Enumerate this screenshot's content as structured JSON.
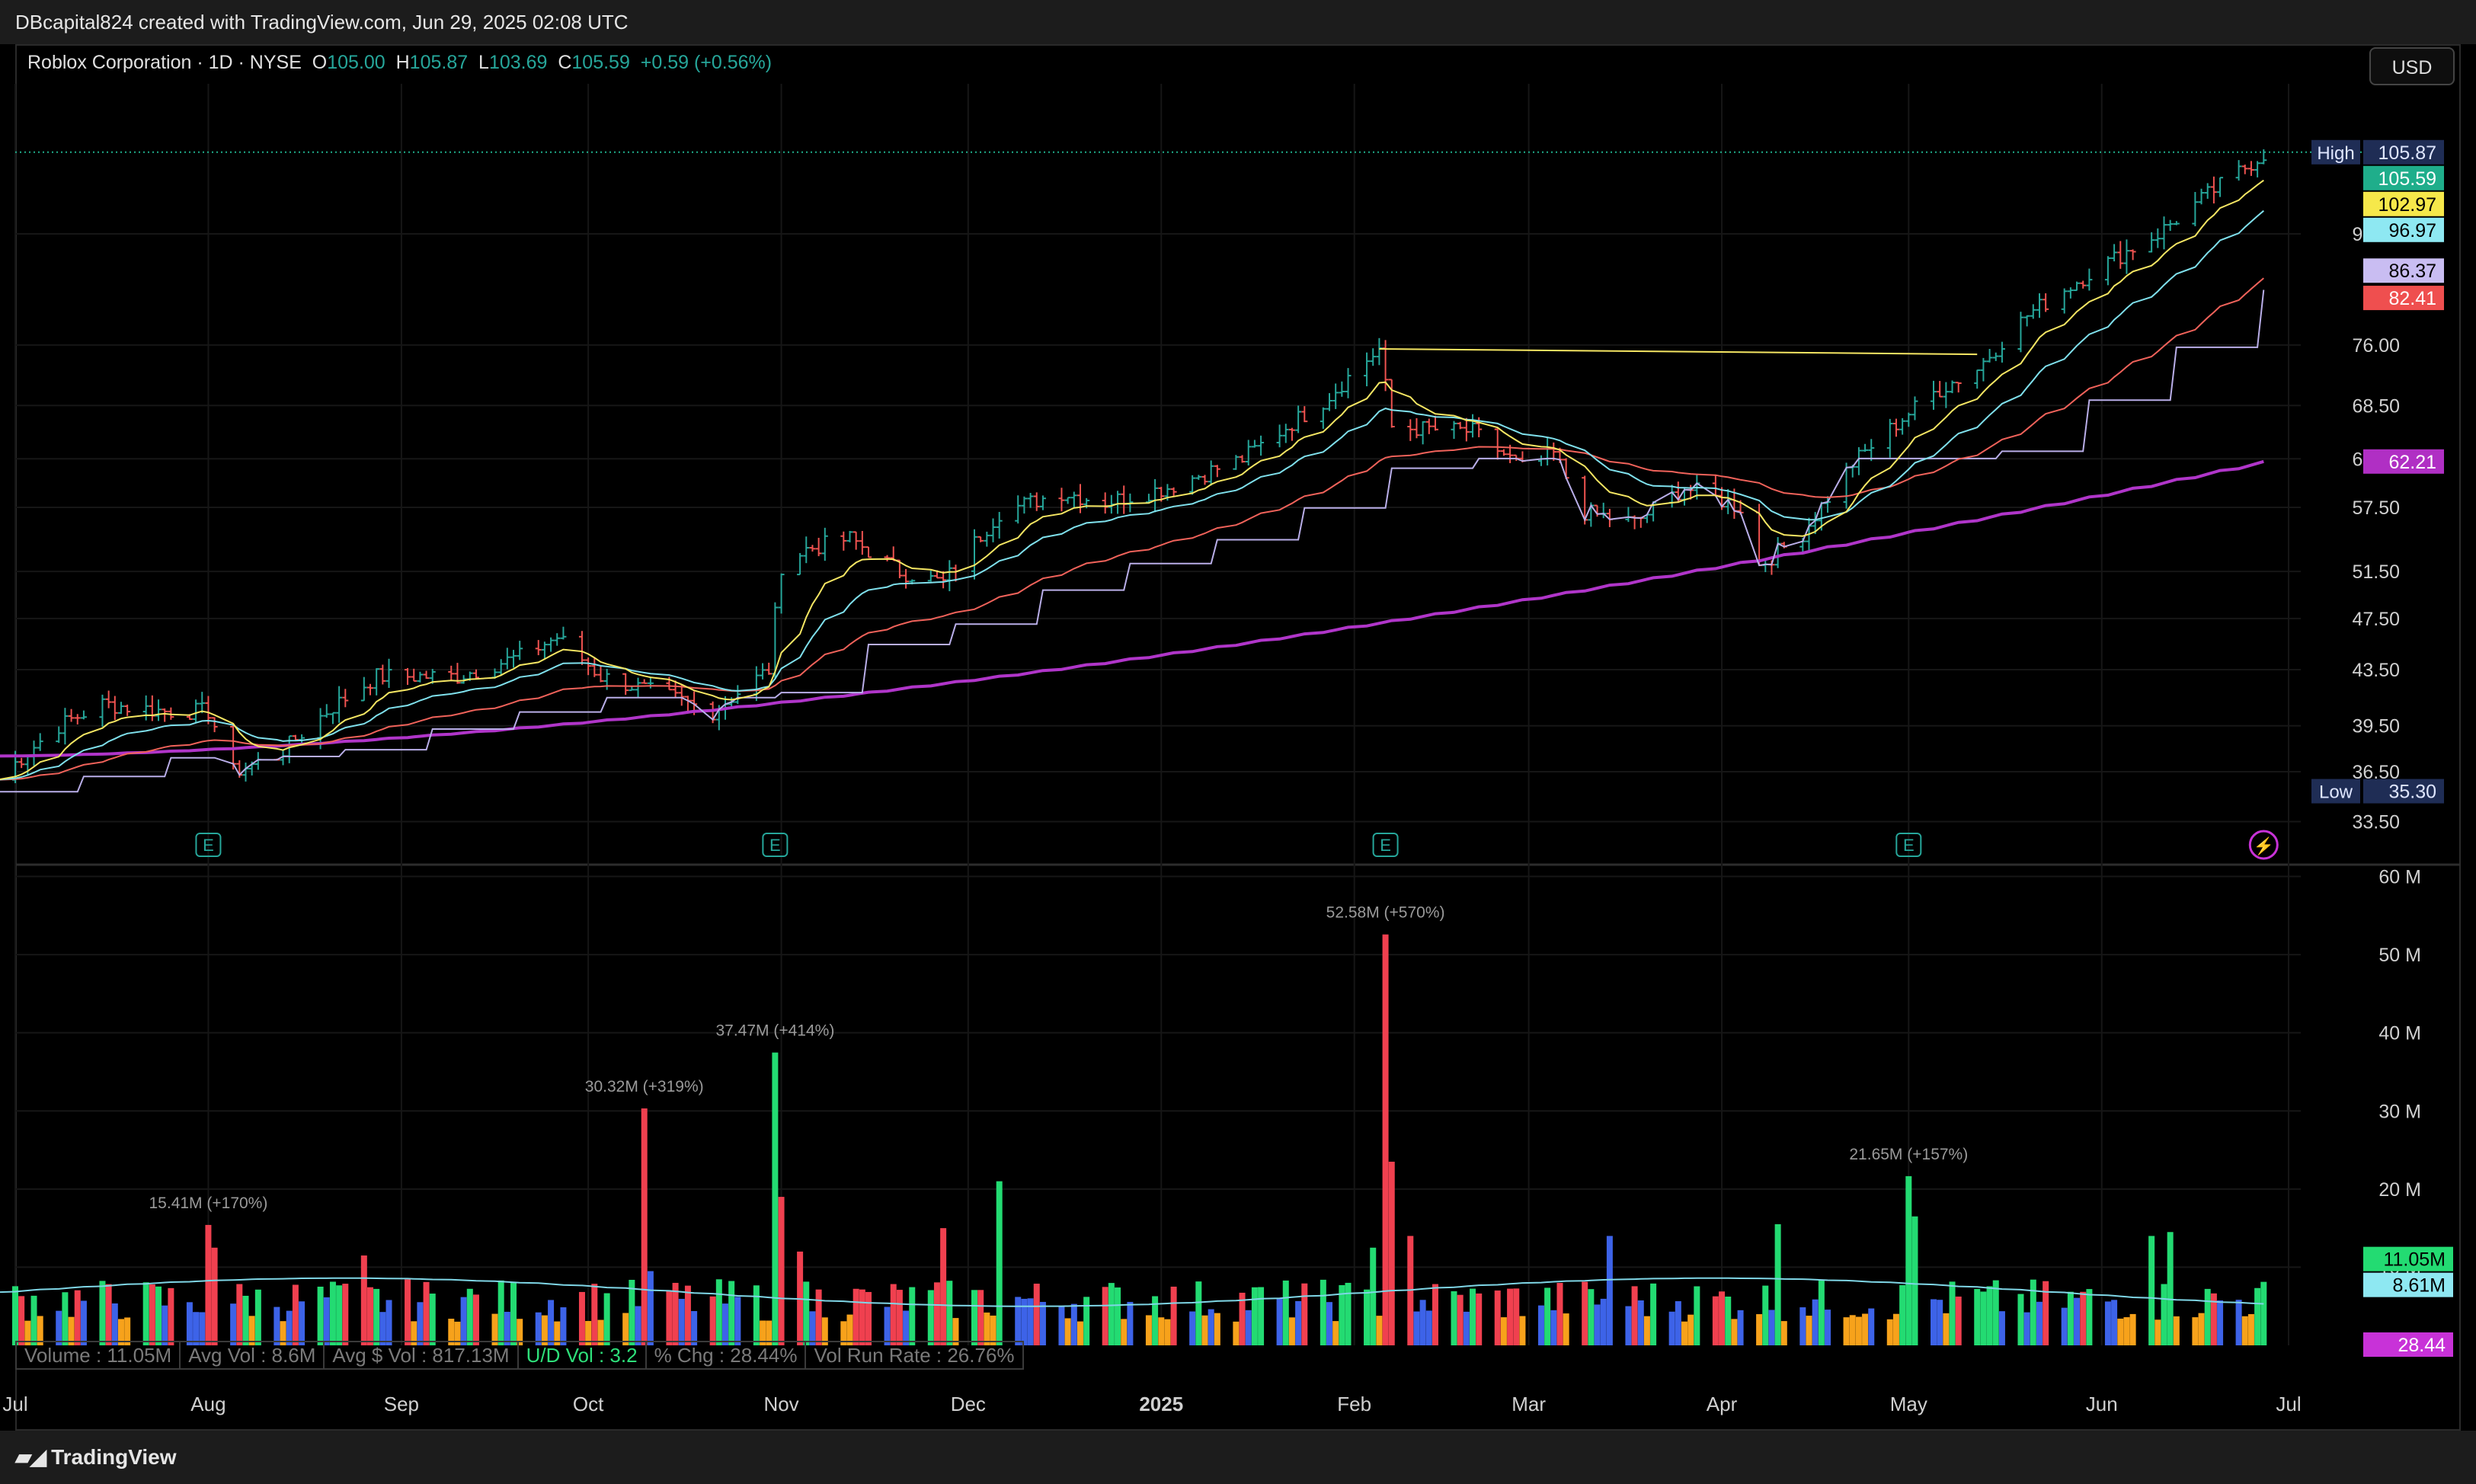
{
  "header": {
    "credit": "DBcapital824 created with TradingView.com, Jun 29, 2025 02:08 UTC"
  },
  "legend": {
    "symbol": "Roblox Corporation · 1D · NYSE",
    "o_label": "O",
    "o": "105.00",
    "h_label": "H",
    "h": "105.87",
    "l_label": "L",
    "l": "103.69",
    "c_label": "C",
    "c": "105.59",
    "change": "+0.59 (+0.56%)"
  },
  "currency_button": "USD",
  "footer": {
    "brand": "TradingView"
  },
  "stats": {
    "volume": "Volume : 11.05M",
    "avg_vol": "Avg Vol : 8.6M",
    "avg_dollar_vol": "Avg $ Vol : 817.13M",
    "ud_vol": "U/D Vol : 3.2",
    "pct_chg": "% Chg : 28.44%",
    "vol_run_rate": "Vol Run Rate : 26.76%"
  },
  "colors": {
    "up": "#26a69a",
    "ema_fast": "#f5e663",
    "ema_mid": "#7fe0ec",
    "ema_slow": "#f0625a",
    "stairs": "#b9aee8",
    "ma200": "#b035c9",
    "signal": "#39e64d",
    "vol_red": "#f0404f",
    "vol_green": "#23db72",
    "vol_blue": "#3d63e8",
    "vol_orange": "#f7a21b",
    "vol_avg_line": "#7fd6e6"
  },
  "chart_data": {
    "type": "candlestick+volume",
    "price_axis": {
      "scale": "log",
      "ticks": [
        "33.50",
        "36.50",
        "39.50",
        "43.50",
        "47.50",
        "51.50",
        "57.50",
        "62.50",
        "68.50",
        "76.00",
        "92.00"
      ],
      "range": [
        33,
        113
      ]
    },
    "time_axis": {
      "ticks": [
        {
          "label": "Jul",
          "date": "2024-07-01",
          "bold": false
        },
        {
          "label": "Aug",
          "date": "2024-08-01",
          "bold": false
        },
        {
          "label": "Sep",
          "date": "2024-09-01",
          "bold": false
        },
        {
          "label": "Oct",
          "date": "2024-10-01",
          "bold": false
        },
        {
          "label": "Nov",
          "date": "2024-11-01",
          "bold": false
        },
        {
          "label": "Dec",
          "date": "2024-12-01",
          "bold": false
        },
        {
          "label": "2025",
          "date": "2025-01-01",
          "bold": true
        },
        {
          "label": "Feb",
          "date": "2025-02-01",
          "bold": false
        },
        {
          "label": "Mar",
          "date": "2025-03-01",
          "bold": false
        },
        {
          "label": "Apr",
          "date": "2025-04-01",
          "bold": false
        },
        {
          "label": "May",
          "date": "2025-05-01",
          "bold": false
        },
        {
          "label": "Jun",
          "date": "2025-06-01",
          "bold": false
        },
        {
          "label": "Jul",
          "date": "2025-07-01",
          "bold": false
        }
      ]
    },
    "price_path": [
      [
        "2024-06-28",
        36.0
      ],
      [
        "2024-07-08",
        39.5
      ],
      [
        "2024-07-15",
        41.0
      ],
      [
        "2024-07-25",
        40.5
      ],
      [
        "2024-08-01",
        40.5
      ],
      [
        "2024-08-05",
        36.5
      ],
      [
        "2024-08-12",
        37.5
      ],
      [
        "2024-08-20",
        40.5
      ],
      [
        "2024-08-28",
        43.0
      ],
      [
        "2024-09-10",
        43.0
      ],
      [
        "2024-09-20",
        44.5
      ],
      [
        "2024-09-26",
        46.0
      ],
      [
        "2024-10-03",
        43.0
      ],
      [
        "2024-10-14",
        41.5
      ],
      [
        "2024-10-21",
        40.5
      ],
      [
        "2024-10-30",
        43.5
      ],
      [
        "2024-11-01",
        52.0
      ],
      [
        "2024-11-05",
        53.5
      ],
      [
        "2024-11-12",
        54.5
      ],
      [
        "2024-11-20",
        51.5
      ],
      [
        "2024-11-27",
        50.5
      ],
      [
        "2024-12-06",
        57.0
      ],
      [
        "2024-12-16",
        59.0
      ],
      [
        "2024-12-23",
        58.0
      ],
      [
        "2025-01-02",
        59.5
      ],
      [
        "2025-01-14",
        62.5
      ],
      [
        "2025-01-27",
        69.0
      ],
      [
        "2025-02-05",
        75.5
      ],
      [
        "2025-02-07",
        66.0
      ],
      [
        "2025-02-20",
        65.5
      ],
      [
        "2025-02-28",
        61.5
      ],
      [
        "2025-03-05",
        63.0
      ],
      [
        "2025-03-10",
        57.0
      ],
      [
        "2025-03-18",
        56.0
      ],
      [
        "2025-03-26",
        59.5
      ],
      [
        "2025-04-04",
        57.5
      ],
      [
        "2025-04-07",
        52.0
      ],
      [
        "2025-04-14",
        55.0
      ],
      [
        "2025-04-22",
        62.0
      ],
      [
        "2025-04-30",
        67.0
      ],
      [
        "2025-05-05",
        70.0
      ],
      [
        "2025-05-12",
        73.0
      ],
      [
        "2025-05-20",
        80.0
      ],
      [
        "2025-05-30",
        86.0
      ],
      [
        "2025-06-10",
        92.0
      ],
      [
        "2025-06-20",
        100.0
      ],
      [
        "2025-06-27",
        105.59
      ]
    ],
    "resistance_line": {
      "from": [
        "2025-02-05",
        75.5
      ],
      "to": [
        "2025-05-12",
        74.8
      ]
    },
    "series": [
      {
        "name": "EMA fast",
        "color": "#f5e663",
        "last": 102.97
      },
      {
        "name": "EMA mid",
        "color": "#7fe0ec",
        "last": 96.97
      },
      {
        "name": "stairs",
        "color": "#b9aee8",
        "last": 86.37
      },
      {
        "name": "EMA slow",
        "color": "#f0625a",
        "last": 82.41
      },
      {
        "name": "MA 200",
        "color": "#b035c9",
        "last": 62.21
      }
    ],
    "price_labels": [
      {
        "text": "105.87",
        "price": 105.87,
        "bg": "#1f2d55",
        "fg": "#dfe6ff",
        "prefix": "High"
      },
      {
        "text": "105.59",
        "price": 105.59,
        "bg": "#1fae8b",
        "fg": "#ffffff"
      },
      {
        "text": "102.97",
        "price": 102.97,
        "bg": "#f6e84a",
        "fg": "#000000"
      },
      {
        "text": "96.97",
        "price": 96.97,
        "bg": "#8ee8f2",
        "fg": "#000000"
      },
      {
        "text": "86.37",
        "price": 86.37,
        "bg": "#c9bdf2",
        "fg": "#000000"
      },
      {
        "text": "82.41",
        "price": 82.41,
        "bg": "#ef4f4f",
        "fg": "#ffffff"
      },
      {
        "text": "62.21",
        "price": 62.21,
        "bg": "#b02fc4",
        "fg": "#ffffff"
      },
      {
        "text": "35.30",
        "price": 35.3,
        "bg": "#1f2d55",
        "fg": "#dfe6ff",
        "prefix": "Low"
      }
    ],
    "earnings_markers": [
      "2024-08-01",
      "2024-10-31",
      "2025-02-06",
      "2025-05-01"
    ],
    "flash_marker": "2025-06-27",
    "volume": {
      "ticks": [
        "10M",
        "20M",
        "30M",
        "40M",
        "50M",
        "60M"
      ],
      "tick_values": [
        10,
        20,
        30,
        40,
        50,
        60
      ],
      "max": 62,
      "unit": "M",
      "annotations": [
        {
          "text": "15.41M (+170%)",
          "date": "2024-08-01",
          "value": 15.41
        },
        {
          "text": "30.32M (+319%)",
          "date": "2024-10-10",
          "value": 30.32
        },
        {
          "text": "37.47M (+414%)",
          "date": "2024-10-31",
          "value": 37.47
        },
        {
          "text": "52.58M (+570%)",
          "date": "2025-02-06",
          "value": 52.58
        },
        {
          "text": "21.65M (+157%)",
          "date": "2025-05-01",
          "value": 21.65
        }
      ],
      "spikes": [
        [
          "2024-08-01",
          15.41,
          "red"
        ],
        [
          "2024-08-02",
          12.5,
          "red"
        ],
        [
          "2024-08-26",
          11.5,
          "red"
        ],
        [
          "2024-10-10",
          30.32,
          "red"
        ],
        [
          "2024-10-11",
          9.5,
          "blue"
        ],
        [
          "2024-10-31",
          37.47,
          "green"
        ],
        [
          "2024-11-01",
          19.0,
          "red"
        ],
        [
          "2024-11-04",
          12.0,
          "red"
        ],
        [
          "2024-11-27",
          15.0,
          "red"
        ],
        [
          "2024-12-06",
          21.0,
          "green"
        ],
        [
          "2025-02-06",
          52.58,
          "red"
        ],
        [
          "2025-02-07",
          23.5,
          "red"
        ],
        [
          "2025-02-10",
          14.0,
          "red"
        ],
        [
          "2025-02-04",
          12.5,
          "green"
        ],
        [
          "2025-03-14",
          14.0,
          "blue"
        ],
        [
          "2025-04-10",
          15.5,
          "green"
        ],
        [
          "2025-05-01",
          21.65,
          "green"
        ],
        [
          "2025-05-02",
          16.5,
          "green"
        ],
        [
          "2025-06-09",
          14.0,
          "green"
        ],
        [
          "2025-06-12",
          14.5,
          "green"
        ]
      ],
      "labels": [
        {
          "text": "11.05M",
          "value": 11.05,
          "bg": "#23db72",
          "fg": "#000000"
        },
        {
          "text": "8.61M",
          "value": 8.61,
          "bg": "#8ee8f2",
          "fg": "#000000"
        },
        {
          "text": "28.44",
          "value": null,
          "bg": "#c832d8",
          "fg": "#ffffff"
        }
      ]
    }
  }
}
